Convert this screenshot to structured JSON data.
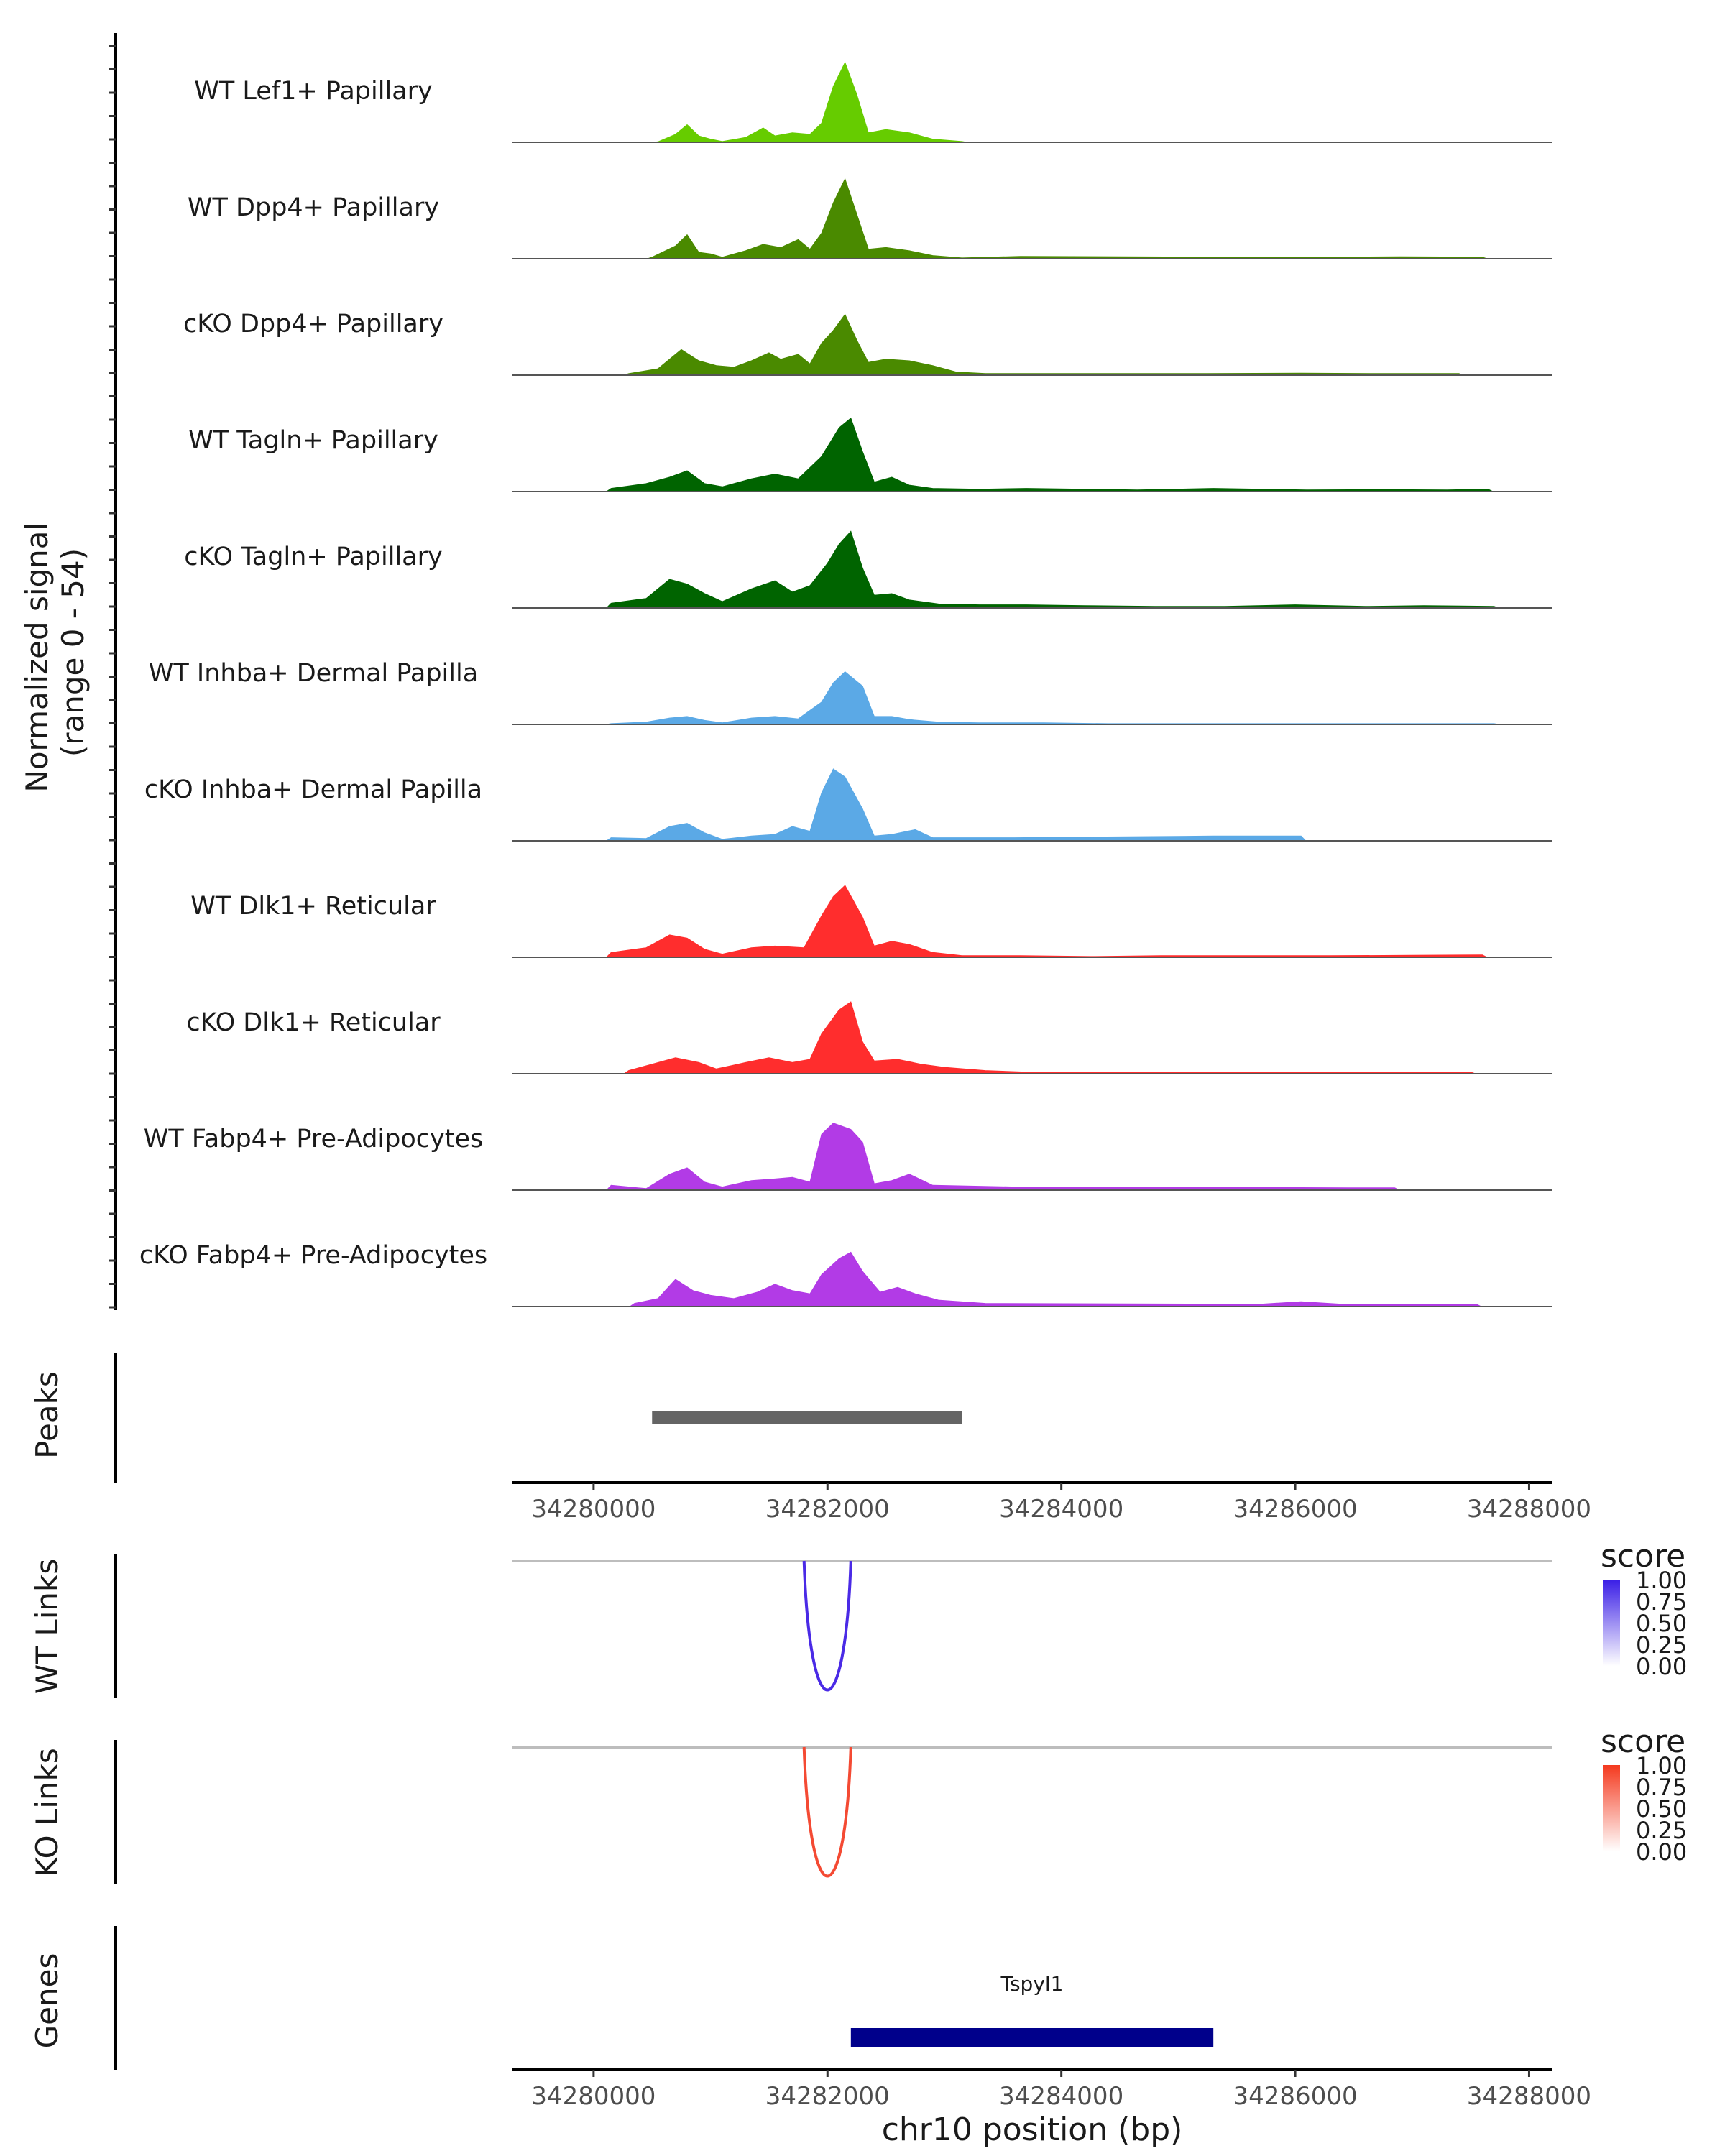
{
  "chart_data": {
    "type": "area",
    "region": "chr10",
    "xlim": [
      34279300,
      34288200
    ],
    "x_ticks": [
      34280000,
      34282000,
      34284000,
      34286000,
      34288000
    ],
    "x_tick_labels": [
      "34280000",
      "34282000",
      "34284000",
      "34286000",
      "34288000"
    ],
    "xlabel": "chr10 position (bp)",
    "coverage_ylabel_line1": "Normalized signal",
    "coverage_ylabel_line2": "(range 0 - 54)",
    "ylim": [
      0,
      54
    ],
    "tracks": [
      {
        "name": "WT Lef1+ Papillary",
        "color": "#66cc00",
        "profile": [
          [
            34280550,
            0.3
          ],
          [
            34280700,
            5
          ],
          [
            34280800,
            11
          ],
          [
            34280900,
            4
          ],
          [
            34281000,
            2
          ],
          [
            34281100,
            0.5
          ],
          [
            34281300,
            3
          ],
          [
            34281450,
            9
          ],
          [
            34281550,
            4
          ],
          [
            34281700,
            6
          ],
          [
            34281850,
            5
          ],
          [
            34281950,
            12
          ],
          [
            34282050,
            35
          ],
          [
            34282150,
            50
          ],
          [
            34282250,
            30
          ],
          [
            34282350,
            6
          ],
          [
            34282500,
            8
          ],
          [
            34282700,
            6
          ],
          [
            34282900,
            2
          ],
          [
            34283150,
            0.5
          ]
        ]
      },
      {
        "name": "WT Dpp4+ Papillary",
        "color": "#4a8a00",
        "profile": [
          [
            34280500,
            1
          ],
          [
            34280700,
            8
          ],
          [
            34280800,
            15
          ],
          [
            34280900,
            4
          ],
          [
            34281000,
            3
          ],
          [
            34281100,
            1
          ],
          [
            34281300,
            5
          ],
          [
            34281450,
            9
          ],
          [
            34281600,
            7
          ],
          [
            34281750,
            12
          ],
          [
            34281850,
            6
          ],
          [
            34281950,
            16
          ],
          [
            34282050,
            35
          ],
          [
            34282150,
            50
          ],
          [
            34282250,
            28
          ],
          [
            34282350,
            6
          ],
          [
            34282500,
            7
          ],
          [
            34282700,
            5
          ],
          [
            34282900,
            2
          ],
          [
            34283150,
            0.5
          ],
          [
            34283650,
            1.5
          ],
          [
            34285250,
            1
          ],
          [
            34286050,
            1
          ],
          [
            34286900,
            1.2
          ],
          [
            34287600,
            1
          ]
        ]
      },
      {
        "name": "cKO Dpp4+ Papillary",
        "color": "#4a8a00",
        "profile": [
          [
            34280300,
            1
          ],
          [
            34280550,
            4
          ],
          [
            34280750,
            16
          ],
          [
            34280900,
            9
          ],
          [
            34281050,
            6
          ],
          [
            34281200,
            5
          ],
          [
            34281350,
            9
          ],
          [
            34281500,
            14
          ],
          [
            34281600,
            10
          ],
          [
            34281750,
            13
          ],
          [
            34281850,
            7
          ],
          [
            34281950,
            20
          ],
          [
            34282050,
            28
          ],
          [
            34282150,
            38
          ],
          [
            34282250,
            22
          ],
          [
            34282350,
            8
          ],
          [
            34282500,
            10
          ],
          [
            34282700,
            9
          ],
          [
            34282900,
            6
          ],
          [
            34283100,
            2
          ],
          [
            34283350,
            1
          ],
          [
            34283800,
            1
          ],
          [
            34284500,
            1
          ],
          [
            34285250,
            1
          ],
          [
            34286050,
            1.2
          ],
          [
            34286700,
            1
          ],
          [
            34287400,
            1
          ]
        ]
      },
      {
        "name": "WT Tagln+ Papillary",
        "color": "#006400",
        "profile": [
          [
            34280150,
            2
          ],
          [
            34280450,
            5
          ],
          [
            34280650,
            9
          ],
          [
            34280800,
            13
          ],
          [
            34280950,
            5
          ],
          [
            34281100,
            3
          ],
          [
            34281350,
            8
          ],
          [
            34281550,
            11
          ],
          [
            34281750,
            8
          ],
          [
            34281950,
            22
          ],
          [
            34282100,
            40
          ],
          [
            34282200,
            46
          ],
          [
            34282300,
            25
          ],
          [
            34282400,
            6
          ],
          [
            34282550,
            9
          ],
          [
            34282700,
            4
          ],
          [
            34282900,
            2
          ],
          [
            34283300,
            1.5
          ],
          [
            34283700,
            2
          ],
          [
            34284200,
            1.5
          ],
          [
            34284650,
            1
          ],
          [
            34285300,
            2
          ],
          [
            34286100,
            1
          ],
          [
            34286700,
            1.2
          ],
          [
            34287300,
            1
          ],
          [
            34287650,
            1.5
          ]
        ]
      },
      {
        "name": "cKO Tagln+ Papillary",
        "color": "#006400",
        "profile": [
          [
            34280150,
            3
          ],
          [
            34280450,
            6
          ],
          [
            34280650,
            18
          ],
          [
            34280800,
            15
          ],
          [
            34280950,
            9
          ],
          [
            34281100,
            4
          ],
          [
            34281350,
            12
          ],
          [
            34281550,
            17
          ],
          [
            34281700,
            10
          ],
          [
            34281850,
            14
          ],
          [
            34282000,
            28
          ],
          [
            34282100,
            40
          ],
          [
            34282200,
            48
          ],
          [
            34282300,
            25
          ],
          [
            34282400,
            8
          ],
          [
            34282550,
            9
          ],
          [
            34282700,
            5
          ],
          [
            34282950,
            2.5
          ],
          [
            34283300,
            2
          ],
          [
            34283700,
            2
          ],
          [
            34284200,
            1.5
          ],
          [
            34284800,
            1
          ],
          [
            34285400,
            1
          ],
          [
            34286000,
            2
          ],
          [
            34286600,
            1
          ],
          [
            34287100,
            1.5
          ],
          [
            34287700,
            1
          ]
        ]
      },
      {
        "name": "WT Inhba+ Dermal Papilla",
        "color": "#5ba9e6",
        "profile": [
          [
            34280150,
            0.5
          ],
          [
            34280450,
            1.5
          ],
          [
            34280650,
            4
          ],
          [
            34280800,
            5
          ],
          [
            34280950,
            2.5
          ],
          [
            34281100,
            1
          ],
          [
            34281350,
            4
          ],
          [
            34281550,
            5
          ],
          [
            34281750,
            3.5
          ],
          [
            34281950,
            14
          ],
          [
            34282050,
            26
          ],
          [
            34282150,
            33
          ],
          [
            34282300,
            24
          ],
          [
            34282400,
            5
          ],
          [
            34282550,
            5
          ],
          [
            34282700,
            3
          ],
          [
            34282950,
            1.5
          ],
          [
            34283300,
            1
          ],
          [
            34283850,
            1
          ],
          [
            34284400,
            0.5
          ],
          [
            34286050,
            0.5
          ],
          [
            34286450,
            0.5
          ],
          [
            34286950,
            0.5
          ],
          [
            34287700,
            0.5
          ]
        ]
      },
      {
        "name": "cKO Inhba+ Dermal Papilla",
        "color": "#5ba9e6",
        "profile": [
          [
            34280150,
            2
          ],
          [
            34280450,
            1.5
          ],
          [
            34280650,
            9
          ],
          [
            34280800,
            11
          ],
          [
            34280950,
            5
          ],
          [
            34281100,
            1
          ],
          [
            34281350,
            3
          ],
          [
            34281550,
            4
          ],
          [
            34281700,
            9
          ],
          [
            34281850,
            6
          ],
          [
            34281950,
            30
          ],
          [
            34282050,
            45
          ],
          [
            34282150,
            40
          ],
          [
            34282300,
            20
          ],
          [
            34282400,
            3
          ],
          [
            34282550,
            4
          ],
          [
            34282750,
            7
          ],
          [
            34282900,
            2
          ],
          [
            34283250,
            2
          ],
          [
            34283600,
            2
          ],
          [
            34285300,
            3
          ],
          [
            34286050,
            3
          ]
        ]
      },
      {
        "name": "WT Dlk1+ Reticular",
        "color": "#ff2d2d",
        "profile": [
          [
            34280150,
            3
          ],
          [
            34280450,
            6
          ],
          [
            34280650,
            14
          ],
          [
            34280800,
            12
          ],
          [
            34280950,
            5
          ],
          [
            34281100,
            2
          ],
          [
            34281350,
            6
          ],
          [
            34281550,
            7
          ],
          [
            34281800,
            6
          ],
          [
            34281950,
            26
          ],
          [
            34282050,
            38
          ],
          [
            34282150,
            45
          ],
          [
            34282300,
            25
          ],
          [
            34282400,
            7
          ],
          [
            34282550,
            10
          ],
          [
            34282700,
            8
          ],
          [
            34282900,
            3
          ],
          [
            34283150,
            1
          ],
          [
            34283650,
            1
          ],
          [
            34284250,
            0.5
          ],
          [
            34284850,
            1
          ],
          [
            34285600,
            1
          ],
          [
            34286300,
            1
          ],
          [
            34287000,
            1.2
          ],
          [
            34287600,
            1.5
          ]
        ]
      },
      {
        "name": "cKO Dlk1+ Reticular",
        "color": "#ff2d2d",
        "profile": [
          [
            34280300,
            2
          ],
          [
            34280500,
            6
          ],
          [
            34280700,
            10
          ],
          [
            34280900,
            7
          ],
          [
            34281050,
            3
          ],
          [
            34281300,
            7
          ],
          [
            34281500,
            10
          ],
          [
            34281700,
            7
          ],
          [
            34281850,
            9
          ],
          [
            34281950,
            25
          ],
          [
            34282100,
            40
          ],
          [
            34282200,
            45
          ],
          [
            34282300,
            20
          ],
          [
            34282400,
            8
          ],
          [
            34282600,
            9
          ],
          [
            34282800,
            6
          ],
          [
            34283000,
            4
          ],
          [
            34283350,
            2
          ],
          [
            34283700,
            1
          ],
          [
            34284400,
            1
          ],
          [
            34285100,
            1
          ],
          [
            34285700,
            1
          ],
          [
            34286300,
            1
          ],
          [
            34286900,
            1
          ],
          [
            34287500,
            1
          ]
        ]
      },
      {
        "name": "WT Fabp4+ Pre-Adipocytes",
        "color": "#b23be6",
        "profile": [
          [
            34280150,
            3
          ],
          [
            34280450,
            1
          ],
          [
            34280650,
            10
          ],
          [
            34280800,
            14
          ],
          [
            34280950,
            5
          ],
          [
            34281100,
            2
          ],
          [
            34281350,
            6
          ],
          [
            34281550,
            7
          ],
          [
            34281700,
            8
          ],
          [
            34281850,
            5
          ],
          [
            34281950,
            35
          ],
          [
            34282050,
            42
          ],
          [
            34282200,
            38
          ],
          [
            34282300,
            30
          ],
          [
            34282400,
            4
          ],
          [
            34282550,
            6
          ],
          [
            34282700,
            10
          ],
          [
            34282900,
            3
          ],
          [
            34283600,
            2
          ],
          [
            34284000,
            2
          ],
          [
            34286450,
            1.5
          ],
          [
            34286850,
            1.5
          ]
        ]
      },
      {
        "name": "cKO Fabp4+ Pre-Adipocytes",
        "color": "#b23be6",
        "profile": [
          [
            34280350,
            2
          ],
          [
            34280550,
            5
          ],
          [
            34280700,
            17
          ],
          [
            34280850,
            10
          ],
          [
            34281000,
            7
          ],
          [
            34281200,
            5
          ],
          [
            34281400,
            9
          ],
          [
            34281550,
            14
          ],
          [
            34281700,
            10
          ],
          [
            34281850,
            8
          ],
          [
            34281950,
            20
          ],
          [
            34282100,
            30
          ],
          [
            34282200,
            34
          ],
          [
            34282300,
            22
          ],
          [
            34282450,
            9
          ],
          [
            34282600,
            12
          ],
          [
            34282750,
            8
          ],
          [
            34282950,
            4
          ],
          [
            34283350,
            2
          ],
          [
            34285350,
            1.5
          ],
          [
            34285700,
            1.5
          ],
          [
            34286050,
            3
          ],
          [
            34286400,
            1.5
          ],
          [
            34287550,
            1.5
          ]
        ]
      }
    ],
    "peaks_track": {
      "label": "Peaks",
      "peaks": [
        {
          "start": 34280500,
          "end": 34283150
        }
      ],
      "color": "#646464"
    },
    "links": [
      {
        "label": "WT Links",
        "start": 34281800,
        "end": 34282200,
        "score": 1.0,
        "color": "#4a2ae6",
        "legend": {
          "title": "score",
          "ticks": [
            "1.00",
            "0.75",
            "0.50",
            "0.25",
            "0.00"
          ],
          "high": "#3a1ee6",
          "low": "#ffffff"
        }
      },
      {
        "label": "KO Links",
        "start": 34281800,
        "end": 34282200,
        "score": 1.0,
        "color": "#f44a33",
        "legend": {
          "title": "score",
          "ticks": [
            "1.00",
            "0.75",
            "0.50",
            "0.25",
            "0.00"
          ],
          "high": "#f4391e",
          "low": "#ffffff"
        }
      }
    ],
    "genes_track": {
      "label": "Genes",
      "genes": [
        {
          "name": "Tspyl1",
          "start": 34282200,
          "end": 34285300,
          "strand": "-",
          "color": "#00008b"
        }
      ]
    }
  }
}
